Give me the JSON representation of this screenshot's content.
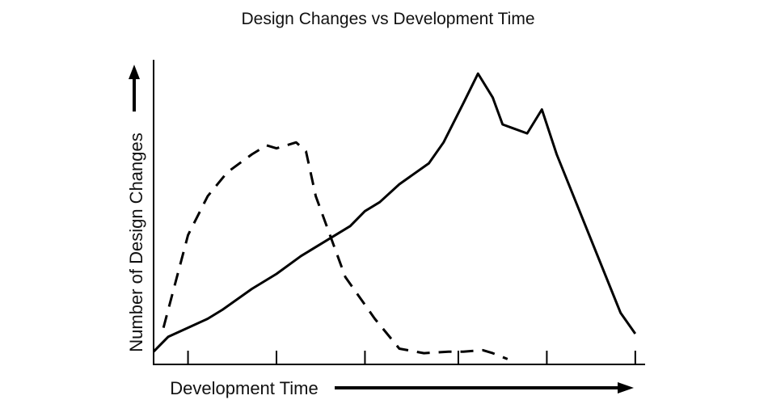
{
  "chart_data": {
    "type": "line",
    "title": "Design Changes vs Development Time",
    "xlabel": "Development Time",
    "ylabel": "Number of Design Changes",
    "xlim": [
      0,
      100
    ],
    "ylim": [
      0,
      100
    ],
    "grid": false,
    "legend": "none",
    "x_ticks": [
      7,
      25,
      43,
      62,
      80,
      98
    ],
    "series": [
      {
        "style": "solid",
        "color": "#000000",
        "x": [
          0,
          3,
          7,
          11,
          14,
          20,
          25,
          30,
          35,
          40,
          43,
          46,
          50,
          56,
          59,
          63,
          66,
          69,
          71,
          76,
          79,
          82,
          95,
          98
        ],
        "y": [
          4,
          9,
          12,
          15,
          18,
          25,
          30,
          36,
          41,
          46,
          51,
          54,
          60,
          67,
          74,
          87,
          97,
          89,
          80,
          77,
          85,
          70,
          17,
          10
        ]
      },
      {
        "style": "dashed",
        "color": "#000000",
        "x": [
          2,
          7,
          11,
          15,
          20,
          23,
          25,
          29,
          31,
          33,
          39,
          45,
          50,
          55,
          60,
          63,
          67,
          69,
          72
        ],
        "y": [
          12,
          43,
          56,
          64,
          70,
          73,
          72,
          74,
          71,
          56,
          29,
          15,
          5,
          3.5,
          4,
          4,
          4.5,
          3.5,
          1.5
        ]
      }
    ]
  }
}
